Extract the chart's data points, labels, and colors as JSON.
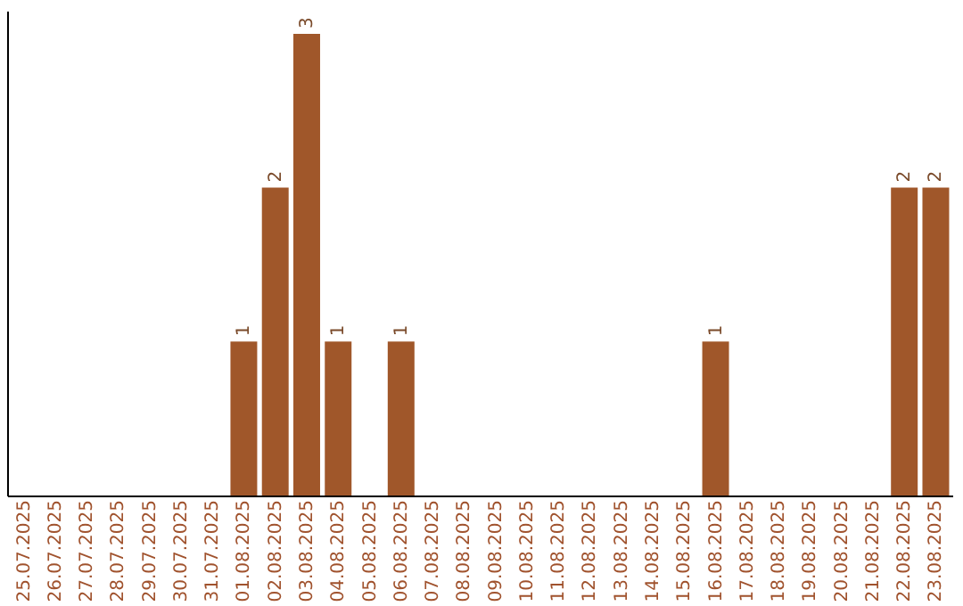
{
  "chart_data": {
    "type": "bar",
    "categories": [
      "25.07.2025",
      "26.07.2025",
      "27.07.2025",
      "28.07.2025",
      "29.07.2025",
      "30.07.2025",
      "31.07.2025",
      "01.08.2025",
      "02.08.2025",
      "03.08.2025",
      "04.08.2025",
      "05.08.2025",
      "06.08.2025",
      "07.08.2025",
      "08.08.2025",
      "09.08.2025",
      "10.08.2025",
      "11.08.2025",
      "12.08.2025",
      "13.08.2025",
      "14.08.2025",
      "15.08.2025",
      "16.08.2025",
      "17.08.2025",
      "18.08.2025",
      "19.08.2025",
      "20.08.2025",
      "21.08.2025",
      "22.08.2025",
      "23.08.2025"
    ],
    "values": [
      0,
      0,
      0,
      0,
      0,
      0,
      0,
      1,
      2,
      3,
      1,
      0,
      1,
      0,
      0,
      0,
      0,
      0,
      0,
      0,
      0,
      0,
      1,
      0,
      0,
      0,
      0,
      0,
      2,
      2
    ],
    "value_labels": [
      null,
      null,
      null,
      null,
      null,
      null,
      null,
      "1",
      "2",
      "3",
      "1",
      null,
      "1",
      null,
      null,
      null,
      null,
      null,
      null,
      null,
      null,
      null,
      "1",
      null,
      null,
      null,
      null,
      null,
      "2",
      "2"
    ],
    "color": "#a0572a",
    "grid": false
  }
}
